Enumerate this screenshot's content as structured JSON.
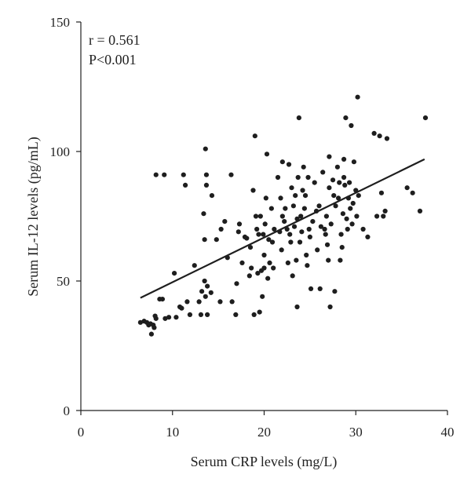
{
  "chart_data": {
    "type": "scatter",
    "title": "",
    "xlabel": "Serum CRP levels (mg/L)",
    "ylabel": "Serum IL-12 levels (pg/mL)",
    "xlim": [
      0,
      40
    ],
    "ylim": [
      0,
      150
    ],
    "xticks": [
      0,
      10,
      20,
      30,
      40
    ],
    "yticks": [
      0,
      50,
      100,
      150
    ],
    "grid": false,
    "annotations": [
      "r = 0.561",
      "P<0.001"
    ],
    "trendline": {
      "x": [
        6.5,
        37.5
      ],
      "y": [
        43.5,
        97
      ]
    },
    "points": [
      [
        6.5,
        34
      ],
      [
        6.9,
        34.5
      ],
      [
        7.2,
        34
      ],
      [
        7.4,
        33
      ],
      [
        7.6,
        33.5
      ],
      [
        7.7,
        29.5
      ],
      [
        7.9,
        33
      ],
      [
        8,
        32
      ],
      [
        8.1,
        36.5
      ],
      [
        8.2,
        35.5
      ],
      [
        8.2,
        91
      ],
      [
        8.6,
        43
      ],
      [
        8.9,
        43
      ],
      [
        9.1,
        91
      ],
      [
        9.2,
        35.5
      ],
      [
        9.6,
        36
      ],
      [
        10.2,
        53
      ],
      [
        10.4,
        36
      ],
      [
        10.8,
        40
      ],
      [
        11,
        39.5
      ],
      [
        11.2,
        91
      ],
      [
        11.4,
        87
      ],
      [
        11.6,
        42
      ],
      [
        11.9,
        37
      ],
      [
        12.4,
        56
      ],
      [
        12.9,
        42
      ],
      [
        13.1,
        37
      ],
      [
        13.2,
        46
      ],
      [
        13.4,
        76
      ],
      [
        13.5,
        50
      ],
      [
        13.5,
        66
      ],
      [
        13.6,
        44
      ],
      [
        13.6,
        101
      ],
      [
        13.7,
        91
      ],
      [
        13.7,
        87
      ],
      [
        13.8,
        48
      ],
      [
        13.8,
        37
      ],
      [
        14.2,
        45.5
      ],
      [
        14.3,
        83
      ],
      [
        14.8,
        66
      ],
      [
        15.2,
        42
      ],
      [
        15.3,
        70
      ],
      [
        15.7,
        73
      ],
      [
        16,
        59
      ],
      [
        16.4,
        91
      ],
      [
        16.5,
        42
      ],
      [
        16.9,
        37
      ],
      [
        17,
        49
      ],
      [
        17.2,
        69
      ],
      [
        17.3,
        72
      ],
      [
        17.6,
        57
      ],
      [
        17.9,
        67
      ],
      [
        18.1,
        66.5
      ],
      [
        18.4,
        52
      ],
      [
        18.5,
        63
      ],
      [
        18.6,
        55
      ],
      [
        18.8,
        85
      ],
      [
        18.9,
        37
      ],
      [
        19,
        106
      ],
      [
        19.1,
        75
      ],
      [
        19.2,
        70
      ],
      [
        19.3,
        53
      ],
      [
        19.4,
        68
      ],
      [
        19.5,
        38
      ],
      [
        19.6,
        75
      ],
      [
        19.7,
        54
      ],
      [
        19.8,
        44
      ],
      [
        19.9,
        68
      ],
      [
        20,
        55
      ],
      [
        20,
        60
      ],
      [
        20.1,
        72
      ],
      [
        20.2,
        82
      ],
      [
        20.3,
        99
      ],
      [
        20.4,
        51
      ],
      [
        20.5,
        66
      ],
      [
        20.6,
        57
      ],
      [
        20.8,
        78
      ],
      [
        20.9,
        65
      ],
      [
        21,
        55
      ],
      [
        21.1,
        70
      ],
      [
        21.5,
        90
      ],
      [
        21.7,
        69
      ],
      [
        21.8,
        82
      ],
      [
        21.9,
        62
      ],
      [
        22,
        96
      ],
      [
        22,
        75
      ],
      [
        22.2,
        73
      ],
      [
        22.3,
        78
      ],
      [
        22.5,
        70
      ],
      [
        22.6,
        57
      ],
      [
        22.7,
        95
      ],
      [
        22.8,
        68
      ],
      [
        22.9,
        65
      ],
      [
        23,
        86
      ],
      [
        23.1,
        52
      ],
      [
        23.2,
        79
      ],
      [
        23.3,
        71
      ],
      [
        23.4,
        83
      ],
      [
        23.5,
        58
      ],
      [
        23.6,
        74
      ],
      [
        23.6,
        40
      ],
      [
        23.7,
        90
      ],
      [
        23.8,
        113
      ],
      [
        23.9,
        65
      ],
      [
        24,
        75
      ],
      [
        24.1,
        69
      ],
      [
        24.2,
        85
      ],
      [
        24.3,
        94
      ],
      [
        24.4,
        78
      ],
      [
        24.5,
        83
      ],
      [
        24.6,
        60
      ],
      [
        24.7,
        56
      ],
      [
        24.8,
        90
      ],
      [
        24.9,
        70
      ],
      [
        25,
        67
      ],
      [
        25.1,
        47
      ],
      [
        25.3,
        73
      ],
      [
        25.5,
        88
      ],
      [
        25.7,
        77
      ],
      [
        25.8,
        62
      ],
      [
        26,
        79
      ],
      [
        26.1,
        47
      ],
      [
        26.2,
        71
      ],
      [
        26.4,
        92
      ],
      [
        26.6,
        70
      ],
      [
        26.7,
        68
      ],
      [
        26.8,
        75
      ],
      [
        26.9,
        64
      ],
      [
        27,
        58
      ],
      [
        27.1,
        86
      ],
      [
        27.1,
        98
      ],
      [
        27.2,
        40
      ],
      [
        27.3,
        72
      ],
      [
        27.5,
        89
      ],
      [
        27.6,
        83
      ],
      [
        27.7,
        46
      ],
      [
        27.8,
        79
      ],
      [
        28,
        94
      ],
      [
        28.1,
        82
      ],
      [
        28.2,
        88
      ],
      [
        28.3,
        58
      ],
      [
        28.4,
        68
      ],
      [
        28.5,
        63
      ],
      [
        28.6,
        76
      ],
      [
        28.7,
        97
      ],
      [
        28.7,
        90
      ],
      [
        28.8,
        87
      ],
      [
        28.9,
        113
      ],
      [
        29,
        74
      ],
      [
        29.1,
        70
      ],
      [
        29.2,
        82
      ],
      [
        29.3,
        88
      ],
      [
        29.4,
        78
      ],
      [
        29.5,
        110
      ],
      [
        29.6,
        72
      ],
      [
        29.7,
        80
      ],
      [
        29.8,
        96
      ],
      [
        30,
        85
      ],
      [
        30.1,
        75
      ],
      [
        30.2,
        121
      ],
      [
        30.3,
        83
      ],
      [
        30.8,
        70
      ],
      [
        31.3,
        67
      ],
      [
        32,
        107
      ],
      [
        32.3,
        75
      ],
      [
        32.6,
        106
      ],
      [
        32.8,
        84
      ],
      [
        33,
        75
      ],
      [
        33.2,
        77
      ],
      [
        33.4,
        105
      ],
      [
        35.6,
        86
      ],
      [
        36.2,
        84
      ],
      [
        37,
        77
      ],
      [
        37.6,
        113
      ]
    ]
  }
}
